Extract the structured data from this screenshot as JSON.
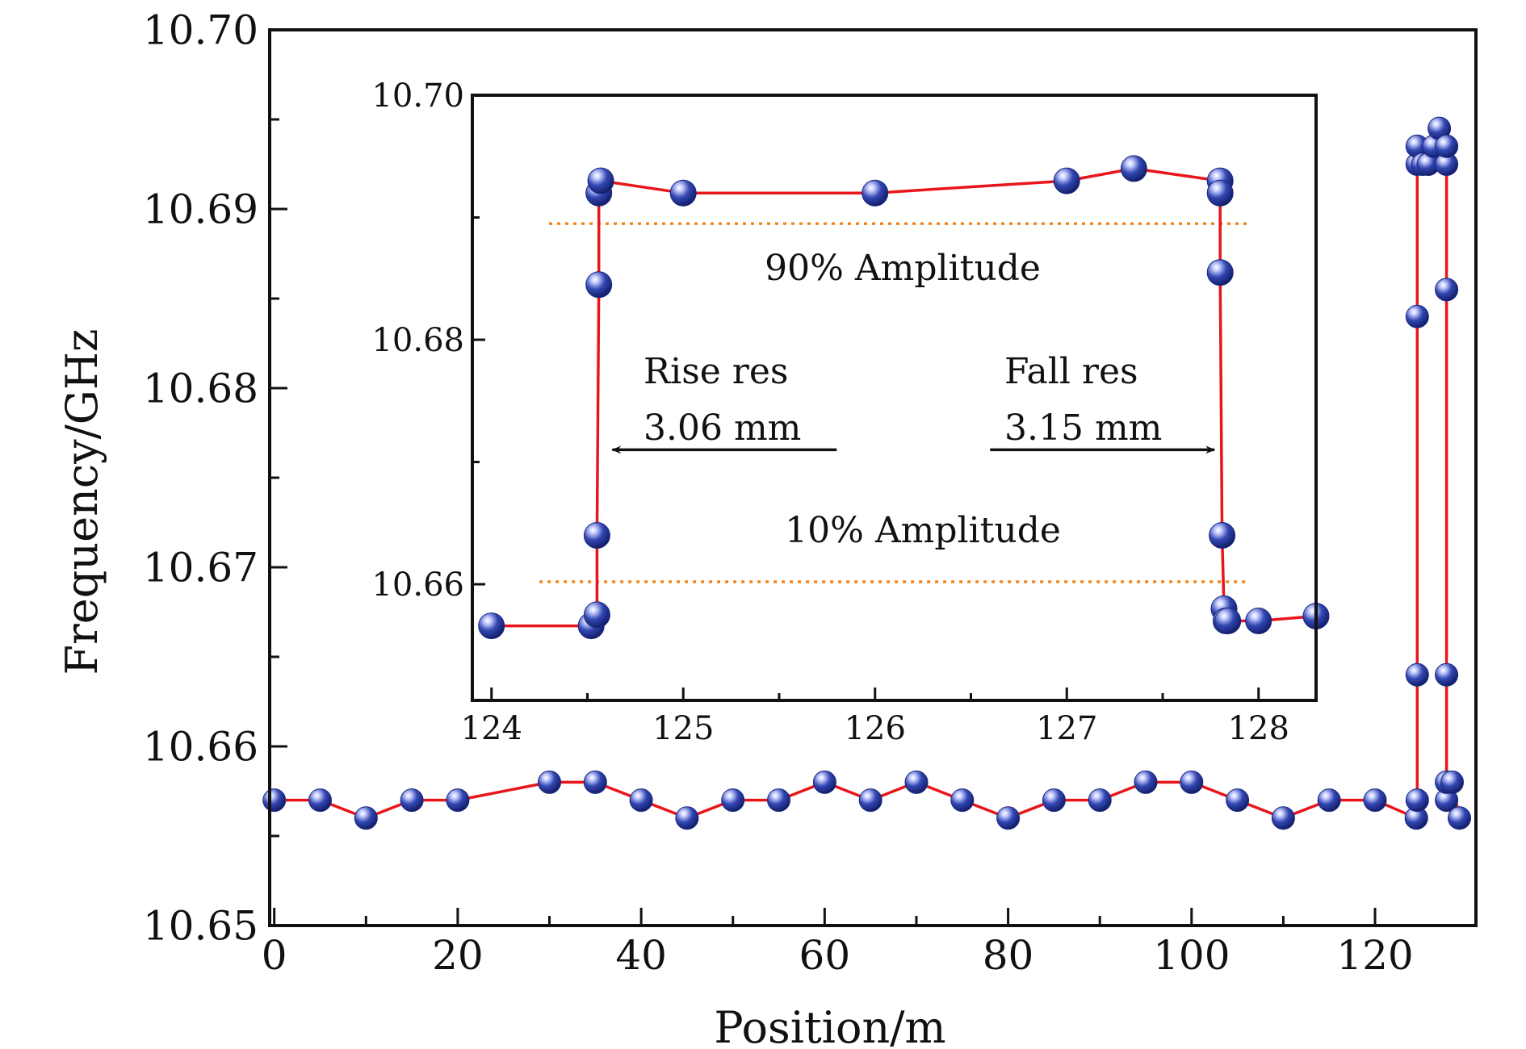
{
  "chart_data": [
    {
      "type": "line",
      "xlabel": "Position/m",
      "ylabel": "Frequency/GHz",
      "xlim": [
        -0.5,
        131
      ],
      "ylim": [
        10.65,
        10.7
      ],
      "xticks": [
        0,
        20,
        40,
        60,
        80,
        100,
        120
      ],
      "xtick_labels": [
        "0",
        "20",
        "40",
        "60",
        "80",
        "100",
        "120"
      ],
      "yticks": [
        10.65,
        10.66,
        10.67,
        10.68,
        10.69,
        10.7
      ],
      "ytick_labels": [
        "10.65",
        "10.66",
        "10.67",
        "10.68",
        "10.69",
        "10.70"
      ],
      "colors": {
        "line": "#e8161b",
        "marker": "#27399c",
        "marker_light": "#c9d0ff"
      },
      "series": [
        {
          "name": "main",
          "x": [
            0,
            5,
            10,
            15,
            20,
            30,
            35,
            40,
            45,
            50,
            55,
            60,
            65,
            70,
            75,
            80,
            85,
            90,
            95,
            100,
            105,
            110,
            115,
            120,
            124.5,
            124.6,
            124.6,
            124.6,
            124.6,
            124.6,
            125.2,
            125.8,
            126.4,
            127,
            127.8,
            127.8,
            127.8,
            127.8,
            127.8,
            127.8,
            128.4,
            129.2
          ],
          "y": [
            10.657,
            10.657,
            10.656,
            10.657,
            10.657,
            10.658,
            10.658,
            10.657,
            10.656,
            10.657,
            10.657,
            10.658,
            10.657,
            10.658,
            10.657,
            10.656,
            10.657,
            10.657,
            10.658,
            10.658,
            10.657,
            10.656,
            10.657,
            10.657,
            10.656,
            10.657,
            10.664,
            10.684,
            10.6925,
            10.6935,
            10.6925,
            10.6925,
            10.6935,
            10.6945,
            10.6925,
            10.6935,
            10.6855,
            10.664,
            10.657,
            10.658,
            10.658,
            10.656
          ]
        }
      ]
    },
    {
      "type": "line",
      "xlim": [
        123.9,
        128.3
      ],
      "ylim": [
        10.6505,
        10.7
      ],
      "xticks": [
        124,
        125,
        126,
        127,
        128
      ],
      "xtick_labels": [
        "124",
        "125",
        "126",
        "127",
        "128"
      ],
      "yticks": [
        10.66,
        10.68,
        10.7
      ],
      "ytick_labels": [
        "10.66",
        "10.68",
        "10.70"
      ],
      "series": [
        {
          "name": "inset",
          "x": [
            124,
            124.52,
            124.55,
            124.55,
            124.56,
            124.56,
            124.57,
            125,
            126,
            127,
            127.35,
            127.8,
            127.8,
            127.8,
            127.81,
            127.82,
            127.83,
            127.84,
            128,
            128.3
          ],
          "y": [
            10.6566,
            10.6566,
            10.6575,
            10.664,
            10.6845,
            10.692,
            10.693,
            10.692,
            10.692,
            10.693,
            10.694,
            10.693,
            10.692,
            10.6855,
            10.664,
            10.658,
            10.657,
            10.657,
            10.657,
            10.6574
          ]
        }
      ],
      "reference_lines": [
        {
          "name": "90% Amplitude",
          "y": 10.6895,
          "x_range": [
            124.3,
            127.95
          ],
          "color": "#f0861e"
        },
        {
          "name": "10% Amplitude",
          "y": 10.6602,
          "x_range": [
            124.25,
            127.95
          ],
          "color": "#f0861e"
        }
      ],
      "annotations": {
        "amp90": "90% Amplitude",
        "amp10": "10% Amplitude",
        "rise_title": "Rise res",
        "rise_value": "3.06 mm",
        "fall_title": "Fall res",
        "fall_value": "3.15 mm"
      },
      "arrows": [
        {
          "name": "rise-arrow",
          "from": [
            125.8,
            10.671
          ],
          "to": [
            124.63,
            10.671
          ]
        },
        {
          "name": "fall-arrow",
          "from": [
            126.6,
            10.671
          ],
          "to": [
            127.77,
            10.671
          ]
        }
      ]
    }
  ]
}
